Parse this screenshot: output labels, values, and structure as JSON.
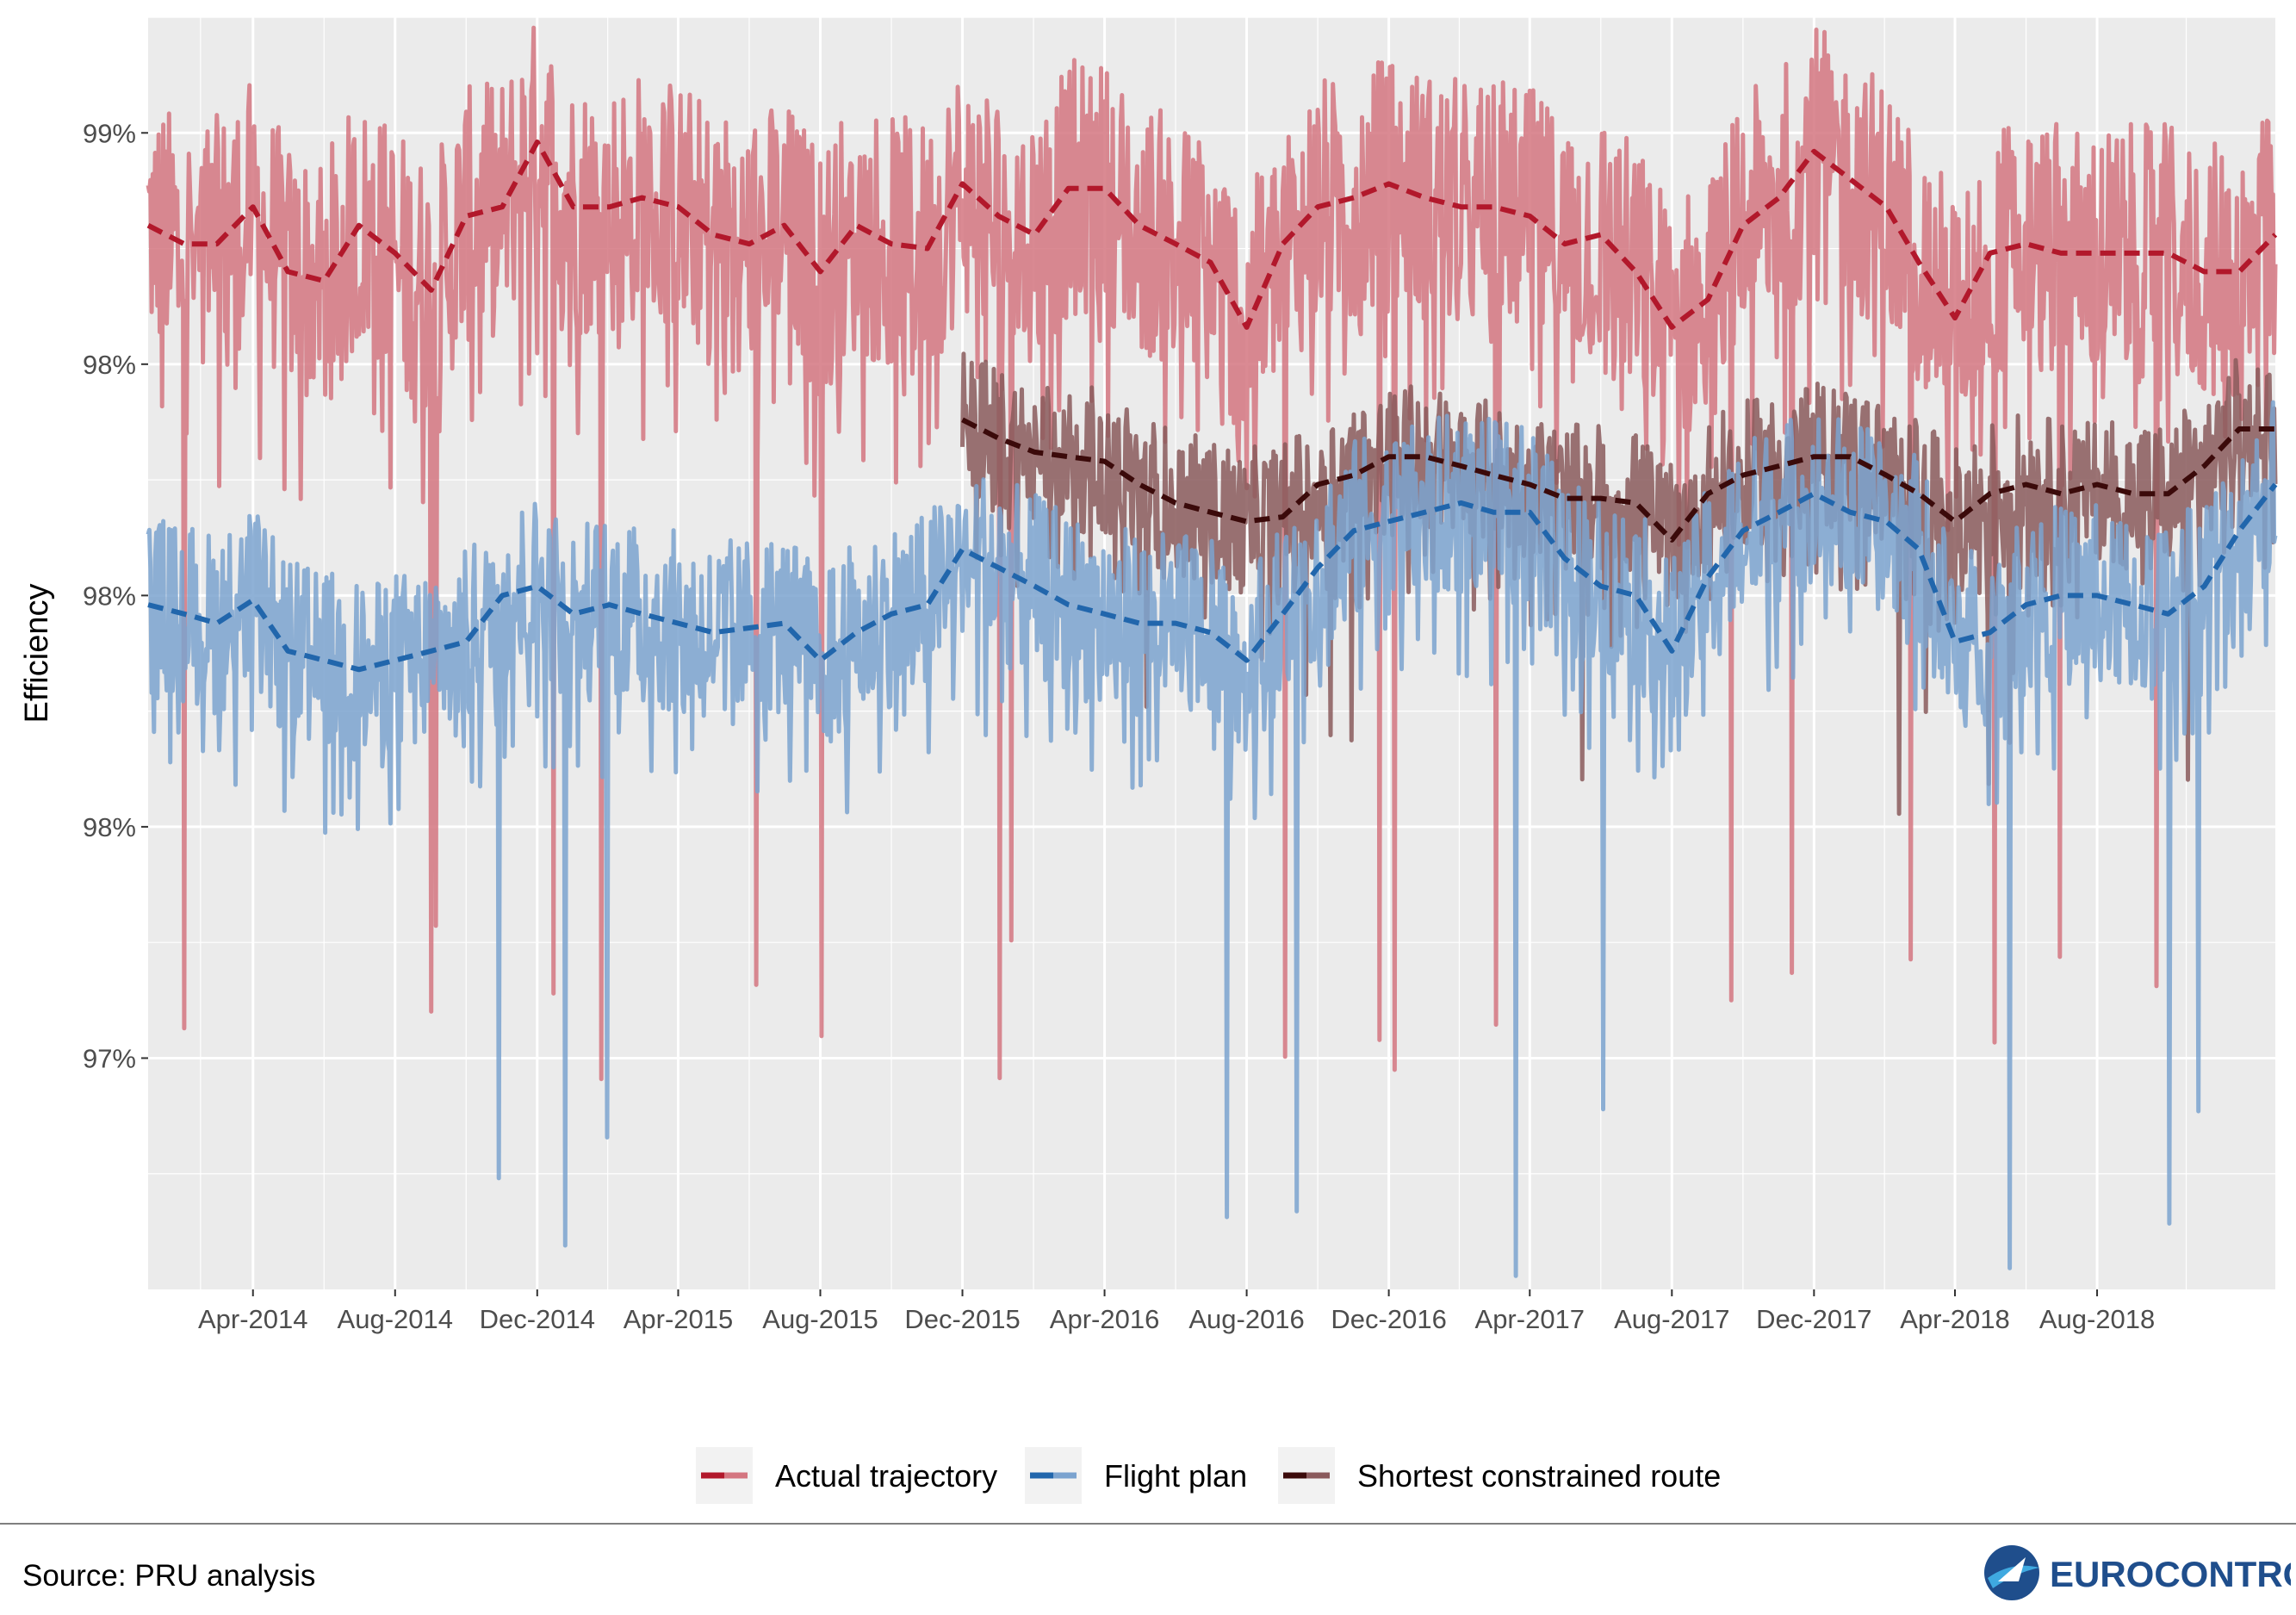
{
  "source_note": "Source: PRU analysis",
  "logo_text": "EUROCONTROL",
  "colors": {
    "panel_bg": "#ebebeb",
    "grid_major": "#ffffff",
    "actual_raw": "#d47680",
    "actual_trend": "#b2182b",
    "plan_raw": "#7ba3cf",
    "plan_trend": "#2166ac",
    "scr_raw": "#8a5a5c",
    "scr_trend": "#3b0a0a"
  },
  "chart_data": {
    "type": "line",
    "title": "",
    "xlabel": "",
    "ylabel": "Efficiency",
    "xlim": [
      "2014-01-01",
      "2019-01-01"
    ],
    "ylim": [
      96.5,
      99.25
    ],
    "y_ticks": [
      97.0,
      97.5,
      98.0,
      98.5,
      99.0
    ],
    "y_tick_labels": [
      "97%",
      "98%",
      "98%",
      "98%",
      "99%"
    ],
    "x_ticks": [
      "2014-04-01",
      "2014-08-01",
      "2014-12-01",
      "2015-04-01",
      "2015-08-01",
      "2015-12-01",
      "2016-04-01",
      "2016-08-01",
      "2016-12-01",
      "2017-04-01",
      "2017-08-01",
      "2017-12-01",
      "2018-04-01",
      "2018-08-01"
    ],
    "x_tick_labels": [
      "Apr-2014",
      "Aug-2014",
      "Dec-2014",
      "Apr-2015",
      "Aug-2015",
      "Dec-2015",
      "Apr-2016",
      "Aug-2016",
      "Dec-2016",
      "Apr-2017",
      "Aug-2017",
      "Dec-2017",
      "Apr-2018",
      "Aug-2018"
    ],
    "grid": true,
    "legend_position": "bottom",
    "series": [
      {
        "name": "Actual trajectory",
        "trend_x": [
          "2014-01-01",
          "2014-02-01",
          "2014-03-01",
          "2014-04-01",
          "2014-05-01",
          "2014-06-01",
          "2014-07-01",
          "2014-08-01",
          "2014-09-01",
          "2014-10-01",
          "2014-11-01",
          "2014-12-01",
          "2015-01-01",
          "2015-02-01",
          "2015-03-01",
          "2015-04-01",
          "2015-05-01",
          "2015-06-01",
          "2015-07-01",
          "2015-08-01",
          "2015-09-01",
          "2015-10-01",
          "2015-11-01",
          "2015-12-01",
          "2016-01-01",
          "2016-02-01",
          "2016-03-01",
          "2016-04-01",
          "2016-05-01",
          "2016-06-01",
          "2016-07-01",
          "2016-08-01",
          "2016-09-01",
          "2016-10-01",
          "2016-11-01",
          "2016-12-01",
          "2017-01-01",
          "2017-02-01",
          "2017-03-01",
          "2017-04-01",
          "2017-05-01",
          "2017-06-01",
          "2017-07-01",
          "2017-08-01",
          "2017-09-01",
          "2017-10-01",
          "2017-11-01",
          "2017-12-01",
          "2018-01-01",
          "2018-02-01",
          "2018-03-01",
          "2018-04-01",
          "2018-05-01",
          "2018-06-01",
          "2018-07-01",
          "2018-08-01",
          "2018-09-01",
          "2018-10-01",
          "2018-11-01",
          "2018-12-01",
          "2019-01-01"
        ],
        "trend_y": [
          98.8,
          98.76,
          98.76,
          98.84,
          98.7,
          98.68,
          98.8,
          98.74,
          98.66,
          98.82,
          98.84,
          98.98,
          98.84,
          98.84,
          98.86,
          98.84,
          98.78,
          98.76,
          98.8,
          98.7,
          98.8,
          98.76,
          98.75,
          98.89,
          98.82,
          98.78,
          98.88,
          98.88,
          98.8,
          98.76,
          98.72,
          98.58,
          98.76,
          98.84,
          98.86,
          98.89,
          98.86,
          98.84,
          98.84,
          98.82,
          98.76,
          98.78,
          98.7,
          98.58,
          98.64,
          98.8,
          98.86,
          98.96,
          98.9,
          98.84,
          98.72,
          98.6,
          98.74,
          98.76,
          98.74,
          98.74,
          98.74,
          98.74,
          98.7,
          98.7,
          98.78
        ],
        "daily_range": [
          98.0,
          99.25
        ],
        "daily_min_outlier": 96.95
      },
      {
        "name": "Flight plan",
        "trend_x": [
          "2014-01-01",
          "2014-02-01",
          "2014-03-01",
          "2014-04-01",
          "2014-05-01",
          "2014-06-01",
          "2014-07-01",
          "2014-08-01",
          "2014-09-01",
          "2014-10-01",
          "2014-11-01",
          "2014-12-01",
          "2015-01-01",
          "2015-02-01",
          "2015-03-01",
          "2015-04-01",
          "2015-05-01",
          "2015-06-01",
          "2015-07-01",
          "2015-08-01",
          "2015-09-01",
          "2015-10-01",
          "2015-11-01",
          "2015-12-01",
          "2016-01-01",
          "2016-02-01",
          "2016-03-01",
          "2016-04-01",
          "2016-05-01",
          "2016-06-01",
          "2016-07-01",
          "2016-08-01",
          "2016-09-01",
          "2016-10-01",
          "2016-11-01",
          "2016-12-01",
          "2017-01-01",
          "2017-02-01",
          "2017-03-01",
          "2017-04-01",
          "2017-05-01",
          "2017-06-01",
          "2017-07-01",
          "2017-08-01",
          "2017-09-01",
          "2017-10-01",
          "2017-11-01",
          "2017-12-01",
          "2018-01-01",
          "2018-02-01",
          "2018-03-01",
          "2018-04-01",
          "2018-05-01",
          "2018-06-01",
          "2018-07-01",
          "2018-08-01",
          "2018-09-01",
          "2018-10-01",
          "2018-11-01",
          "2018-12-01",
          "2019-01-01"
        ],
        "trend_y": [
          97.98,
          97.96,
          97.94,
          97.99,
          97.88,
          97.86,
          97.84,
          97.86,
          97.88,
          97.9,
          98.0,
          98.02,
          97.96,
          97.98,
          97.96,
          97.94,
          97.92,
          97.93,
          97.94,
          97.86,
          97.92,
          97.96,
          97.98,
          98.1,
          98.06,
          98.02,
          97.98,
          97.96,
          97.94,
          97.94,
          97.92,
          97.86,
          97.96,
          98.06,
          98.14,
          98.16,
          98.18,
          98.2,
          98.18,
          98.18,
          98.08,
          98.02,
          98.0,
          97.88,
          98.04,
          98.14,
          98.18,
          98.22,
          98.18,
          98.16,
          98.1,
          97.9,
          97.92,
          97.98,
          98.0,
          98.0,
          97.98,
          97.96,
          98.02,
          98.14,
          98.24
        ],
        "daily_range": [
          97.6,
          98.4
        ],
        "daily_min_outlier": 96.5
      },
      {
        "name": "Shortest constrained route",
        "trend_x": [
          "2015-12-01",
          "2016-01-01",
          "2016-02-01",
          "2016-03-01",
          "2016-04-01",
          "2016-05-01",
          "2016-06-01",
          "2016-07-01",
          "2016-08-01",
          "2016-09-01",
          "2016-10-01",
          "2016-11-01",
          "2016-12-01",
          "2017-01-01",
          "2017-02-01",
          "2017-03-01",
          "2017-04-01",
          "2017-05-01",
          "2017-06-01",
          "2017-07-01",
          "2017-08-01",
          "2017-09-01",
          "2017-10-01",
          "2017-11-01",
          "2017-12-01",
          "2018-01-01",
          "2018-02-01",
          "2018-03-01",
          "2018-04-01",
          "2018-05-01",
          "2018-06-01",
          "2018-07-01",
          "2018-08-01",
          "2018-09-01",
          "2018-10-01",
          "2018-11-01",
          "2018-12-01",
          "2019-01-01"
        ],
        "trend_y": [
          98.38,
          98.34,
          98.31,
          98.3,
          98.29,
          98.24,
          98.2,
          98.18,
          98.16,
          98.17,
          98.24,
          98.26,
          98.3,
          98.3,
          98.28,
          98.26,
          98.24,
          98.21,
          98.21,
          98.2,
          98.12,
          98.22,
          98.26,
          98.28,
          98.3,
          98.3,
          98.26,
          98.22,
          98.16,
          98.22,
          98.24,
          98.22,
          98.24,
          98.22,
          98.22,
          98.28,
          98.36,
          98.36
        ],
        "daily_range": [
          98.0,
          98.6
        ],
        "daily_min_outlier": 97.5
      }
    ],
    "legend": [
      {
        "label": "Actual trajectory"
      },
      {
        "label": "Flight plan"
      },
      {
        "label": "Shortest constrained route"
      }
    ]
  }
}
